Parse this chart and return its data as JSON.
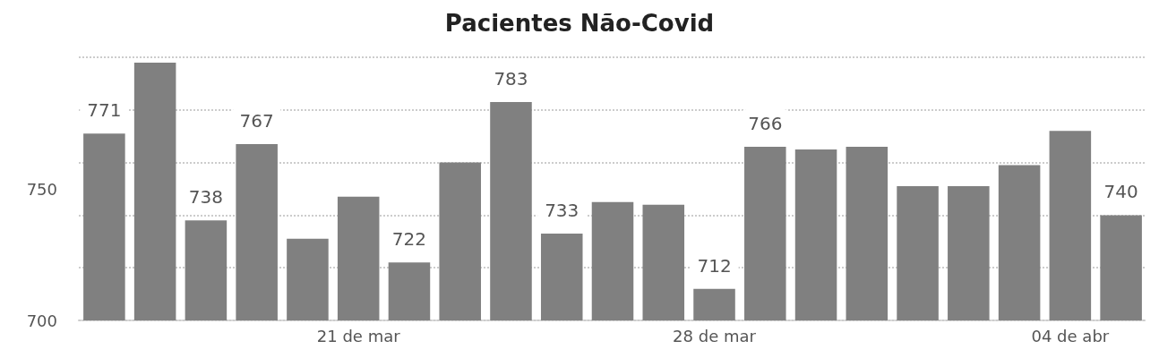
{
  "chart_data": {
    "type": "bar",
    "title": "Pacientes Não-Covid",
    "categories": [
      null,
      null,
      null,
      null,
      null,
      "21 de mar",
      null,
      null,
      null,
      null,
      null,
      null,
      "28 de mar",
      null,
      null,
      null,
      null,
      null,
      null,
      "04 de abr",
      null
    ],
    "values": [
      771,
      798,
      738,
      767,
      731,
      747,
      722,
      760,
      783,
      733,
      745,
      744,
      712,
      766,
      765,
      766,
      751,
      751,
      759,
      772,
      740
    ],
    "value_labels": [
      "771",
      null,
      "738",
      "767",
      null,
      null,
      "722",
      null,
      "783",
      "733",
      null,
      null,
      "712",
      "766",
      null,
      null,
      null,
      null,
      null,
      null,
      "740"
    ],
    "color": "#808080",
    "ylim": [
      700,
      800
    ],
    "yticks": [
      700,
      750
    ],
    "grid": "y"
  }
}
